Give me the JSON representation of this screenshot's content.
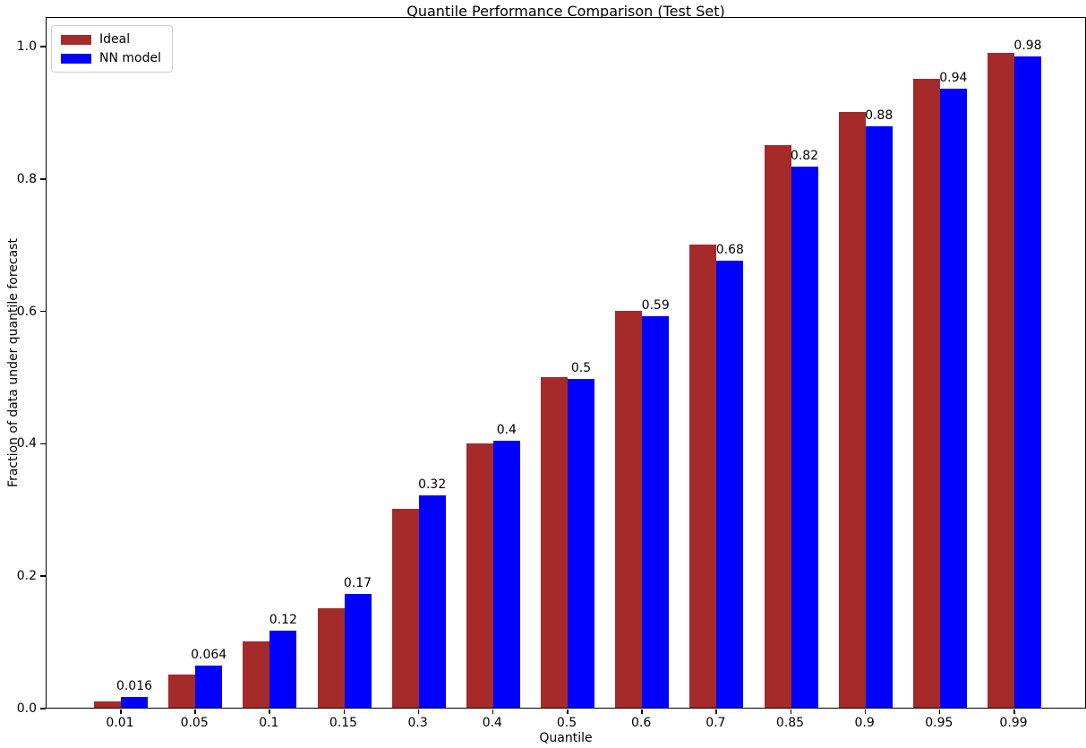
{
  "chart_data": {
    "type": "bar",
    "title": "Quantile Performance Comparison (Test Set)",
    "xlabel": "Quantile",
    "ylabel": "Fraction of data under quantile forecast",
    "categories": [
      "0.01",
      "0.05",
      "0.1",
      "0.15",
      "0.3",
      "0.4",
      "0.5",
      "0.6",
      "0.7",
      "0.85",
      "0.9",
      "0.95",
      "0.99"
    ],
    "series": [
      {
        "name": "Ideal",
        "color": "#A52A2A",
        "values": [
          0.01,
          0.05,
          0.1,
          0.15,
          0.3,
          0.4,
          0.5,
          0.6,
          0.7,
          0.85,
          0.9,
          0.95,
          0.99
        ]
      },
      {
        "name": "NN model",
        "color": "#0000FF",
        "values": [
          0.016,
          0.064,
          0.117,
          0.172,
          0.321,
          0.403,
          0.497,
          0.592,
          0.675,
          0.818,
          0.879,
          0.936,
          0.984
        ]
      }
    ],
    "bar_value_labels": [
      "0.016",
      "0.064",
      "0.12",
      "0.17",
      "0.32",
      "0.4",
      "0.5",
      "0.59",
      "0.68",
      "0.82",
      "0.88",
      "0.94",
      "0.98"
    ],
    "yticks": [
      {
        "value": 0.0,
        "label": "0.0"
      },
      {
        "value": 0.2,
        "label": "0.2"
      },
      {
        "value": 0.4,
        "label": "0.4"
      },
      {
        "value": 0.6,
        "label": "0.6"
      },
      {
        "value": 0.8,
        "label": "0.8"
      },
      {
        "value": 1.0,
        "label": "1.0"
      }
    ],
    "ylim": [
      0,
      1.045
    ],
    "grid": false,
    "legend_position": "upper left"
  }
}
